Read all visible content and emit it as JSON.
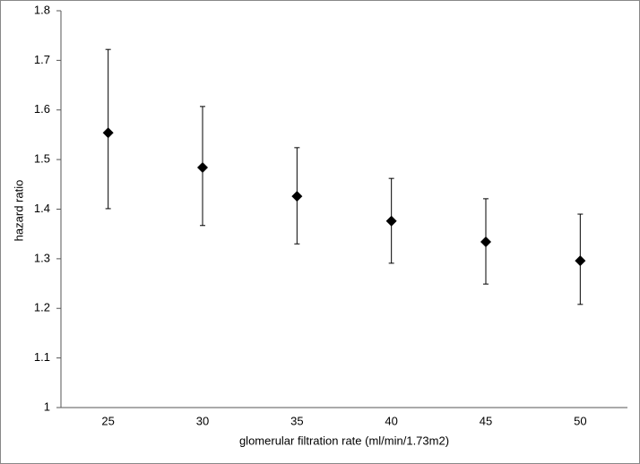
{
  "chart_data": {
    "type": "errorbar",
    "x_label": "glomerular filtration rate (ml/min/1.73m2)",
    "y_label": "hazard ratio",
    "categories": [
      "25",
      "30",
      "35",
      "40",
      "45",
      "50"
    ],
    "series": [
      {
        "color": "#000000",
        "values": [
          1.554,
          1.484,
          1.426,
          1.376,
          1.334,
          1.296
        ],
        "lower": [
          1.401,
          1.367,
          1.33,
          1.291,
          1.249,
          1.208
        ],
        "upper": [
          1.722,
          1.607,
          1.524,
          1.462,
          1.421,
          1.39
        ]
      }
    ],
    "ylim": [
      1,
      1.8
    ],
    "yticks": [
      1,
      1.1,
      1.2,
      1.3,
      1.4,
      1.5,
      1.6,
      1.7,
      1.8
    ],
    "grid": false
  }
}
